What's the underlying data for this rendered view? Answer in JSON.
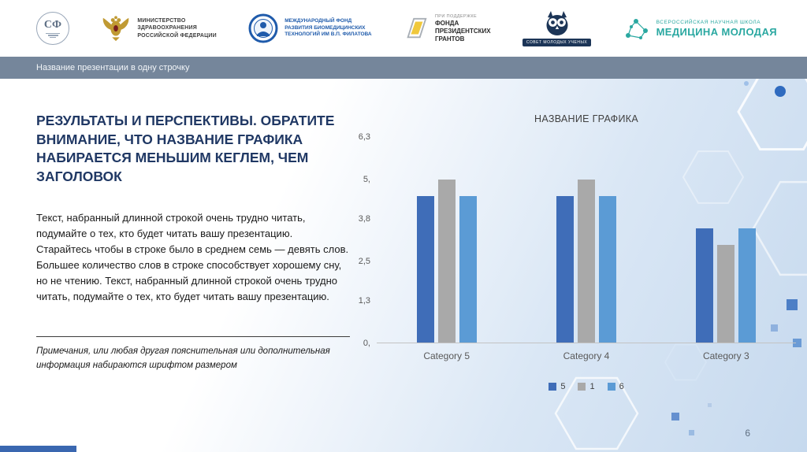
{
  "header": {
    "sf": {
      "label": "СФ"
    },
    "minzdrav": {
      "lines": [
        "МИНИСТЕРСТВО",
        "ЗДРАВООХРАНЕНИЯ",
        "РОССИЙСКОЙ ФЕДЕРАЦИИ"
      ]
    },
    "filatov": {
      "lines": [
        "МЕЖДУНАРОДНЫЙ ФОНД",
        "РАЗВИТИЯ БИОМЕДИЦИНСКИХ",
        "ТЕХНОЛОГИЙ ИМ В.П. ФИЛАТОВА"
      ]
    },
    "grants": {
      "support": "ПРИ ПОДДЕРЖКЕ",
      "lines": [
        "ФОНДА",
        "ПРЕЗИДЕНТСКИХ",
        "ГРАНТОВ"
      ]
    },
    "smu": {
      "label": "СОВЕТ МОЛОДЫХ УЧЕНЫХ"
    },
    "mm": {
      "school": "ВСЕРОССИЙСКАЯ НАУЧНАЯ ШКОЛА",
      "name": "МЕДИЦИНА МОЛОДАЯ"
    }
  },
  "title_bar": {
    "text": "Название презентации в одну строчку"
  },
  "content": {
    "heading": "РЕЗУЛЬТАТЫ И ПЕРСПЕКТИВЫ. ОБРАТИТЕ ВНИМАНИЕ, ЧТО НАЗВАНИЕ ГРАФИКА НАБИРАЕТСЯ МЕНЬШИМ КЕГЛЕМ, ЧЕМ ЗАГОЛОВОК",
    "body": "Текст, набранный длинной строкой очень трудно читать, подумайте о тех, кто будет читать вашу презентацию. Старайтесь чтобы в строке было в среднем семь — девять слов. Большее количество слов в строке способствует хорошему сну, но не чтению. Текст, набранный длинной строкой очень трудно читать, подумайте о тех, кто будет читать вашу презентацию.",
    "note": "Примечания, или любая другая пояснительная или дополнительная информация набираются шрифтом размером"
  },
  "chart_data": {
    "type": "bar",
    "title": "НАЗВАНИЕ ГРАФИКА",
    "categories": [
      "Category 5",
      "Category 4",
      "Category 3"
    ],
    "series": [
      {
        "name": "5",
        "color": "#3f6db8",
        "values": [
          4.5,
          4.5,
          3.5
        ]
      },
      {
        "name": "1",
        "color": "#a9a9a9",
        "values": [
          5.0,
          5.0,
          3.0
        ]
      },
      {
        "name": "6",
        "color": "#5b9bd5",
        "values": [
          4.5,
          4.5,
          3.5
        ]
      }
    ],
    "y_ticks": [
      "6,3",
      "5,",
      "3,8",
      "2,5",
      "1,3",
      "0,"
    ],
    "y_tick_values": [
      6.3,
      5.0,
      3.8,
      2.5,
      1.3,
      0
    ],
    "ylim": [
      0,
      6.3
    ],
    "grid": false,
    "legend_position": "bottom"
  },
  "page_number": "6",
  "colors": {
    "accent_navy": "#203864",
    "title_bar_bg": "#75869b",
    "teal_brand": "#2aa8a1",
    "filatov_blue": "#1f5bab",
    "grants_yellow": "#f0c83c",
    "eagle_gold": "#c09a33",
    "bottom_strip": "#3a67b0"
  }
}
